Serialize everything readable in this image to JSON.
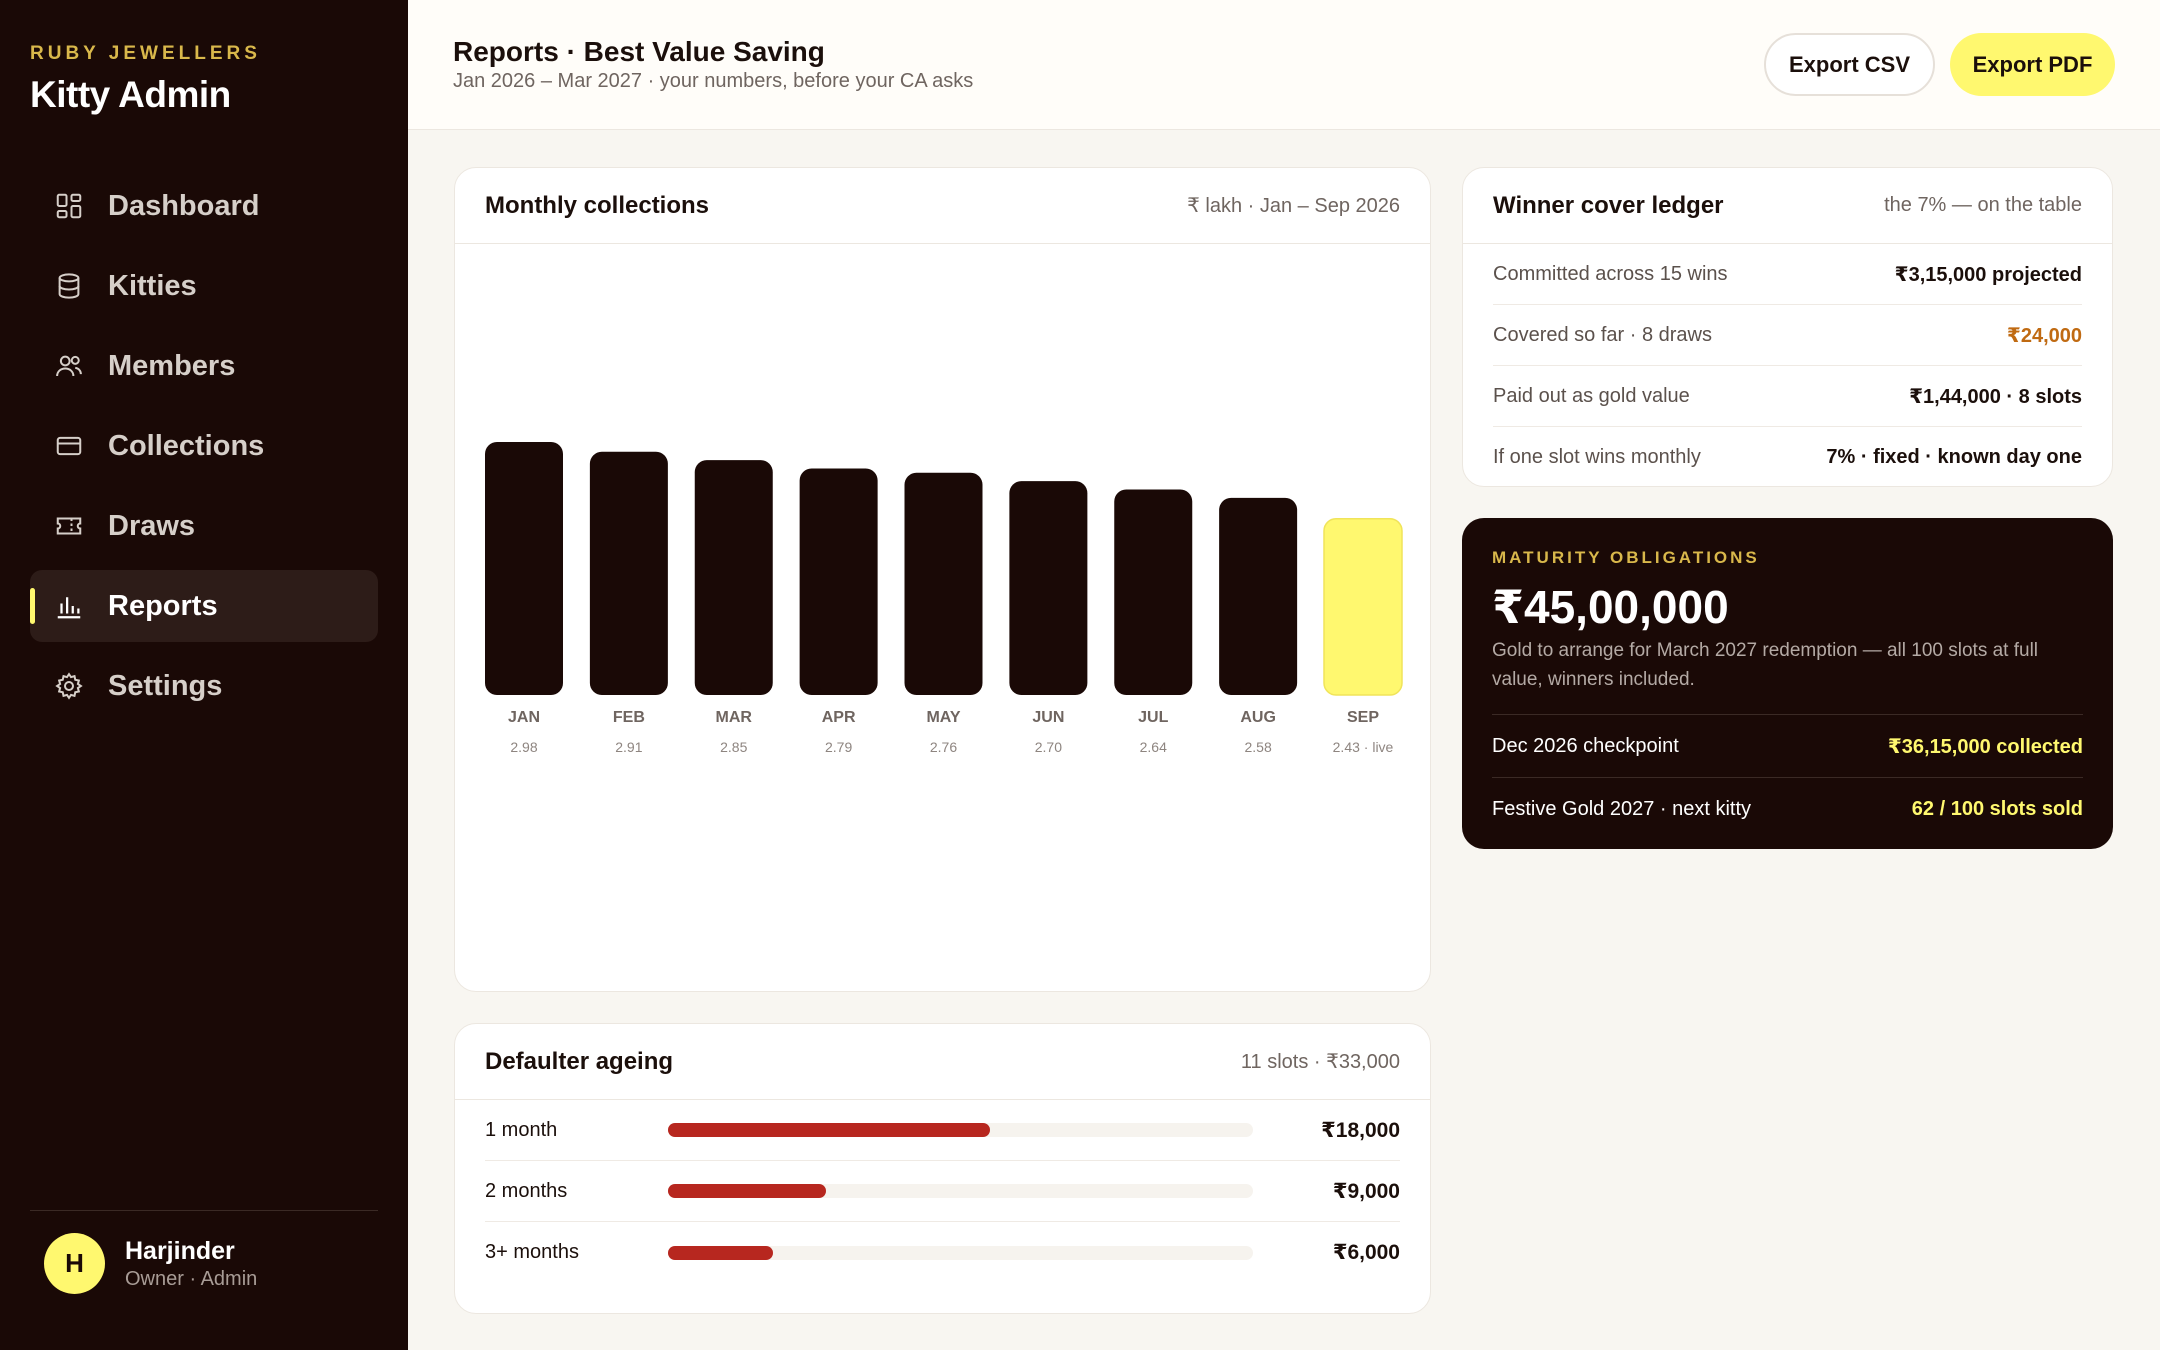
{
  "sidebar": {
    "brand_small": "RUBY JEWELLERS",
    "brand_title": "Kitty Admin",
    "items": [
      {
        "label": "Dashboard",
        "icon": "dashboard-grid-icon"
      },
      {
        "label": "Kitties",
        "icon": "database-stack-icon"
      },
      {
        "label": "Members",
        "icon": "users-icon"
      },
      {
        "label": "Collections",
        "icon": "card-icon"
      },
      {
        "label": "Draws",
        "icon": "ticket-icon"
      },
      {
        "label": "Reports",
        "icon": "bar-chart-icon",
        "active": true
      },
      {
        "label": "Settings",
        "icon": "gear-icon"
      }
    ],
    "user": {
      "initial": "H",
      "name": "Harjinder",
      "role": "Owner · Admin"
    }
  },
  "header": {
    "title": "Reports · Best Value Saving",
    "subtitle": "Jan 2026 – Mar 2027 · your numbers, before your CA asks",
    "export_csv": "Export CSV",
    "export_pdf": "Export PDF"
  },
  "collections": {
    "title": "Monthly collections",
    "meta": "₹ lakh · Jan – Sep 2026"
  },
  "chart_data": {
    "type": "bar",
    "categories": [
      "JAN",
      "FEB",
      "MAR",
      "APR",
      "MAY",
      "JUN",
      "JUL",
      "AUG",
      "SEP"
    ],
    "values": [
      2.98,
      2.91,
      2.85,
      2.79,
      2.76,
      2.7,
      2.64,
      2.58,
      2.43
    ],
    "value_labels": [
      "2.98",
      "2.91",
      "2.85",
      "2.79",
      "2.76",
      "2.70",
      "2.64",
      "2.58",
      "2.43 · live"
    ],
    "highlight_index": 8,
    "colors": {
      "bar": "#1a0906",
      "highlight": "#fff86f",
      "highlight_border": "#f0e45a"
    },
    "grid": false
  },
  "defaulter": {
    "title": "Defaulter ageing",
    "meta": "11 slots · ₹33,000",
    "rows": [
      {
        "label": "1 month",
        "amount": "₹18,000",
        "fraction": 0.55
      },
      {
        "label": "2 months",
        "amount": "₹9,000",
        "fraction": 0.27
      },
      {
        "label": "3+ months",
        "amount": "₹6,000",
        "fraction": 0.18
      }
    ]
  },
  "ledger": {
    "title": "Winner cover ledger",
    "meta": "the 7% — on the table",
    "rows": [
      {
        "label": "Committed across 15 wins",
        "value": "₹3,15,000 projected"
      },
      {
        "label": "Covered so far · 8 draws",
        "value": "₹24,000",
        "accent": "amber"
      },
      {
        "label": "Paid out as gold value",
        "value": "₹1,44,000 · 8 slots"
      },
      {
        "label": "If one slot wins monthly",
        "value": "7% · fixed · known day one"
      }
    ]
  },
  "maturity": {
    "eyebrow": "MATURITY OBLIGATIONS",
    "amount": "₹45,00,000",
    "description": "Gold to arrange for March 2027 redemption — all 100 slots at full value, winners included.",
    "rows": [
      {
        "label": "Dec 2026 checkpoint",
        "value": "₹36,15,000 collected"
      },
      {
        "label": "Festive Gold 2027 · next kitty",
        "value": "62 / 100 slots sold"
      }
    ]
  }
}
